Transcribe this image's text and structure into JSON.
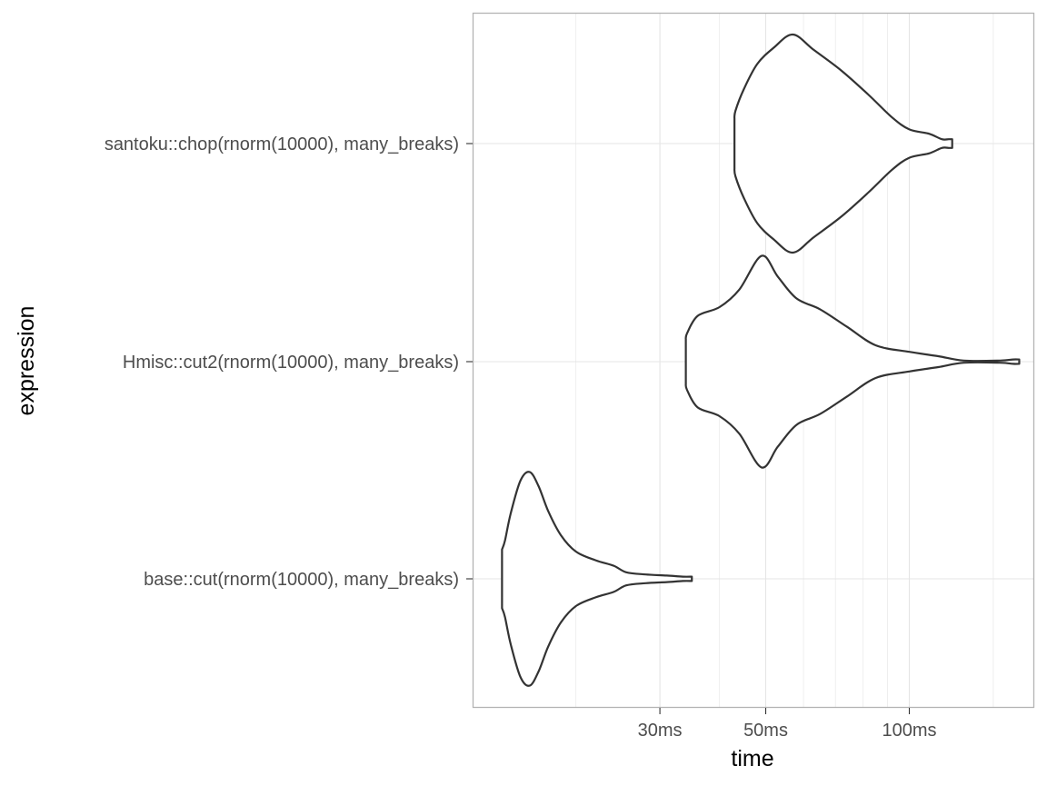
{
  "chart_data": {
    "type": "violin",
    "title": "",
    "xlabel": "time",
    "ylabel": "expression",
    "x_scale": "log10",
    "x_unit": "ms",
    "xlim": [
      12.2,
      182
    ],
    "x_ticks": [
      {
        "value": 30,
        "label": "30ms"
      },
      {
        "value": 50,
        "label": "50ms"
      },
      {
        "value": 100,
        "label": "100ms"
      }
    ],
    "x_minor_gridlines": [
      20,
      40,
      60,
      70,
      80,
      90,
      150
    ],
    "categories": [
      "base::cut(rnorm(10000), many_breaks)",
      "Hmisc::cut2(rnorm(10000), many_breaks)",
      "santoku::chop(rnorm(10000), many_breaks)"
    ],
    "grid": true,
    "legend": "none",
    "colors": {
      "outline": "#333333",
      "grid": "#e5e5e5",
      "panel_border": "#b3b3b3"
    },
    "series": [
      {
        "category": "base::cut(rnorm(10000), many_breaks)",
        "min_ms": 14.0,
        "max_ms": 35.0,
        "density_profile": [
          [
            14.0,
            0.27
          ],
          [
            14.2,
            0.35
          ],
          [
            14.6,
            0.6
          ],
          [
            15.3,
            0.9
          ],
          [
            16.0,
            0.98
          ],
          [
            16.7,
            0.85
          ],
          [
            17.5,
            0.62
          ],
          [
            18.6,
            0.4
          ],
          [
            20.0,
            0.25
          ],
          [
            22.0,
            0.17
          ],
          [
            24.0,
            0.12
          ],
          [
            25.5,
            0.06
          ],
          [
            28.0,
            0.04
          ],
          [
            31.0,
            0.03
          ],
          [
            33.5,
            0.02
          ],
          [
            35.0,
            0.02
          ]
        ]
      },
      {
        "category": "Hmisc::cut2(rnorm(10000), many_breaks)",
        "min_ms": 34.0,
        "max_ms": 170.0,
        "density_profile": [
          [
            34.0,
            0.2
          ],
          [
            34.2,
            0.26
          ],
          [
            36.0,
            0.42
          ],
          [
            40.0,
            0.5
          ],
          [
            44.0,
            0.66
          ],
          [
            49.0,
            0.97
          ],
          [
            53.0,
            0.78
          ],
          [
            58.0,
            0.58
          ],
          [
            65.0,
            0.48
          ],
          [
            74.0,
            0.32
          ],
          [
            85.0,
            0.15
          ],
          [
            100.0,
            0.09
          ],
          [
            115.0,
            0.05
          ],
          [
            130.0,
            0.01
          ],
          [
            155.0,
            0.01
          ],
          [
            165.0,
            0.02
          ],
          [
            170.0,
            0.02
          ]
        ]
      },
      {
        "category": "santoku::chop(rnorm(10000), many_breaks)",
        "min_ms": 43.0,
        "max_ms": 123.0,
        "density_profile": [
          [
            43.0,
            0.22
          ],
          [
            43.2,
            0.3
          ],
          [
            45.0,
            0.5
          ],
          [
            48.0,
            0.73
          ],
          [
            52.0,
            0.88
          ],
          [
            57.0,
            1.0
          ],
          [
            63.0,
            0.86
          ],
          [
            72.0,
            0.67
          ],
          [
            82.0,
            0.45
          ],
          [
            92.0,
            0.24
          ],
          [
            100.0,
            0.13
          ],
          [
            110.0,
            0.09
          ],
          [
            117.0,
            0.04
          ],
          [
            121.0,
            0.04
          ],
          [
            123.0,
            0.04
          ]
        ]
      }
    ]
  }
}
